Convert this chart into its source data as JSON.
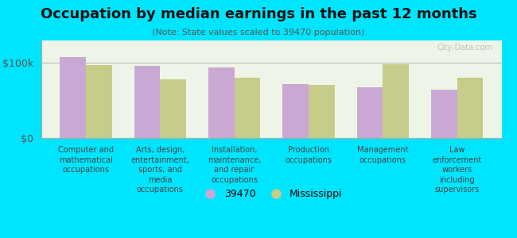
{
  "title": "Occupation by median earnings in the past 12 months",
  "subtitle": "(Note: State values scaled to 39470 population)",
  "categories": [
    "Computer and\nmathematical\noccupations",
    "Arts, design,\nentertainment,\nsports, and\nmedia\noccupations",
    "Installation,\nmaintenance,\nand repair\noccupations",
    "Production\noccupations",
    "Management\noccupations",
    "Law\nenforcement\nworkers\nincluding\nsupervisors"
  ],
  "values_39470": [
    108000,
    96000,
    94000,
    72000,
    68000,
    65000
  ],
  "values_mississippi": [
    97000,
    78000,
    80000,
    71000,
    98000,
    80000
  ],
  "color_39470": "#c9a8d4",
  "color_mississippi": "#c8cc8a",
  "yticks": [
    0,
    100000
  ],
  "ytick_labels": [
    "$0",
    "$100k"
  ],
  "ylim": [
    0,
    130000
  ],
  "background_color": "#00e5ff",
  "plot_bg_color": "#eef5e8",
  "legend_label_39470": "39470",
  "legend_label_mississippi": "Mississippi",
  "watermark": "City-Data.com"
}
